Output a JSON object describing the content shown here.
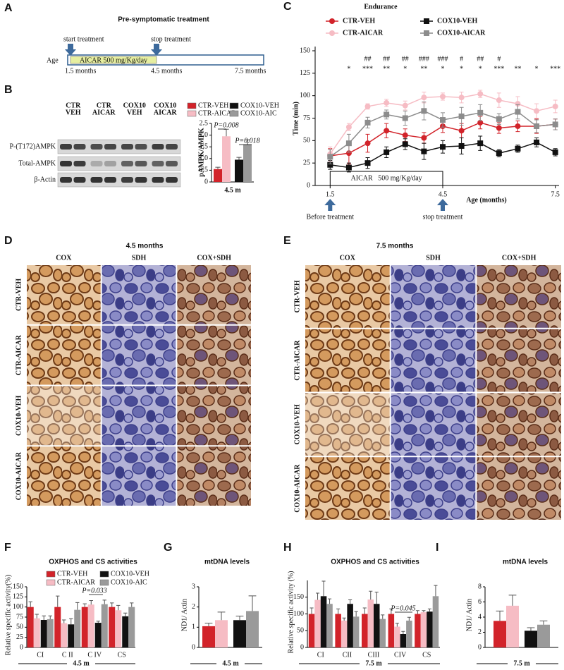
{
  "panel_labels": [
    "A",
    "B",
    "C",
    "D",
    "E",
    "F",
    "G",
    "H",
    "I"
  ],
  "panel_a": {
    "title": "Pre-symptomatic treatment",
    "start": "start treatment",
    "stop": "stop treatment",
    "treatment": "AICAR 500 mg/Kg/day",
    "axis_label": "Age",
    "ages": [
      "1.5 months",
      "4.5 months",
      "7.5 months"
    ]
  },
  "panel_b_blot": {
    "lanes": [
      [
        "CTR",
        "VEH"
      ],
      [
        "CTR",
        "AICAR"
      ],
      [
        "COX10",
        "VEH"
      ],
      [
        "COX10",
        "AICAR"
      ]
    ],
    "rows": [
      "P-(T172)AMPK",
      "Total-AMPK",
      "β-Actin"
    ]
  },
  "histology_d": {
    "title": "4.5 months",
    "columns": [
      "COX",
      "SDH",
      "COX+SDH"
    ],
    "rows": [
      "CTR-VEH",
      "CTR-AICAR",
      "COX10-VEH",
      "COX10-AICAR"
    ]
  },
  "histology_e": {
    "title": "7.5 months",
    "columns": [
      "COX",
      "SDH",
      "COX+SDH"
    ],
    "rows": [
      "CTR-VEH",
      "CTR-AICAR",
      "COX10-VEH",
      "COX10-AICAR"
    ]
  },
  "chart_data": [
    {
      "type": "bar",
      "y_label": "pAMPK/AMPK",
      "x_label": "4.5 m",
      "categories": [
        null
      ],
      "series": [
        {
          "name": "CTR-VEH",
          "color": "#d2232a",
          "values": [
            0.55
          ],
          "errors": [
            0.08
          ]
        },
        {
          "name": "CTR-AICAR",
          "color": "#f6bcc4",
          "values": [
            1.95
          ],
          "errors": [
            0.3
          ]
        },
        {
          "name": "COX10-VEH",
          "color": "#111111",
          "values": [
            0.95
          ],
          "errors": [
            0.1
          ]
        },
        {
          "name": "COX10-AIC",
          "color": "#9a9a9a",
          "values": [
            1.6
          ],
          "errors": [
            0.2
          ]
        }
      ],
      "ylim": [
        0,
        2.5
      ],
      "yticks": [
        0,
        0.5,
        {
          "value": 1,
          "label": "1.0"
        },
        1.5,
        {
          "value": 2,
          "label": "2.0"
        },
        2.5
      ],
      "annotations": [
        "P=0.008",
        "P=0.018"
      ]
    },
    {
      "type": "line",
      "title": "Endurance",
      "x_label": "Age (months)",
      "y_label": "Time (min)",
      "x": [
        1.5,
        2,
        2.5,
        3,
        3.5,
        4,
        4.5,
        5,
        5.5,
        6,
        6.5,
        7,
        7.5
      ],
      "xlim": [
        1.1,
        7.6
      ],
      "xticks": [
        1.5,
        4.5,
        7.5
      ],
      "ylim": [
        0,
        150
      ],
      "yticks": [
        0,
        25,
        50,
        75,
        100,
        125,
        150
      ],
      "series": [
        {
          "name": "CTR-VEH",
          "color": "#d2232a",
          "marker": "circle",
          "values": [
            33,
            36,
            47,
            61,
            56,
            53,
            66,
            61,
            70,
            64,
            66,
            66,
            68
          ],
          "errors": [
            8,
            12,
            10,
            8,
            7,
            6,
            7,
            8,
            7,
            6,
            6,
            8,
            6
          ]
        },
        {
          "name": "CTR-AICAR",
          "color": "#f6bcc4",
          "marker": "circle",
          "values": [
            35,
            65,
            88,
            92,
            89,
            98,
            99,
            98,
            102,
            95,
            91,
            83,
            88
          ],
          "errors": [
            8,
            4,
            3,
            4,
            5,
            6,
            4,
            6,
            4,
            8,
            8,
            8,
            7
          ]
        },
        {
          "name": "COX10-VEH",
          "color": "#111111",
          "marker": "square",
          "values": [
            23,
            20,
            25,
            37,
            46,
            38,
            43,
            44,
            47,
            36,
            41,
            48,
            37
          ],
          "errors": [
            5,
            5,
            6,
            6,
            6,
            9,
            7,
            9,
            8,
            4,
            4,
            5,
            4
          ]
        },
        {
          "name": "COX10-AICAR",
          "color": "#8c8c8c",
          "marker": "square",
          "values": [
            32,
            47,
            70,
            79,
            75,
            83,
            73,
            77,
            81,
            74,
            82,
            66,
            68
          ],
          "errors": [
            8,
            10,
            6,
            5,
            8,
            10,
            8,
            10,
            9,
            6,
            8,
            7,
            6
          ]
        }
      ],
      "significance_hash": [
        null,
        null,
        "##",
        "##",
        "##",
        "###",
        "###",
        "#",
        "##",
        "#",
        null,
        null,
        null
      ],
      "significance_star": [
        null,
        "*",
        "***",
        "**",
        "*",
        "**",
        "*",
        "*",
        "*",
        "***",
        "**",
        "*",
        "***"
      ],
      "treatment_box": {
        "label": "AICAR   500 mg/Kg/day",
        "x": [
          1.5,
          4.5
        ]
      },
      "arrows": [
        {
          "x": 1.5,
          "label": "Before treatment"
        },
        {
          "x": 4.5,
          "label": "stop treatment"
        }
      ]
    },
    {
      "type": "bar",
      "title": "OXPHOS and CS activities",
      "y_label": "Relative specific activity(%)",
      "x_label": "4.5 m",
      "categories": [
        "CI",
        "C II",
        "C IV",
        "CS"
      ],
      "series": [
        {
          "name": "CTR-VEH",
          "color": "#d2232a",
          "values": [
            100,
            100,
            100,
            100
          ],
          "errors": [
            13,
            27,
            8,
            10
          ]
        },
        {
          "name": "CTR-AICAR",
          "color": "#f6bcc4",
          "values": [
            72,
            60,
            106,
            92
          ],
          "errors": [
            10,
            8,
            10,
            12
          ]
        },
        {
          "name": "COX10-VEH",
          "color": "#111111",
          "values": [
            68,
            57,
            61,
            77
          ],
          "errors": [
            10,
            14,
            4,
            8
          ]
        },
        {
          "name": "COX10-AIC",
          "color": "#9a9a9a",
          "values": [
            70,
            93,
            107,
            100
          ],
          "errors": [
            8,
            18,
            10,
            10
          ]
        }
      ],
      "ylim": [
        0,
        150
      ],
      "yticks": [
        0,
        25,
        50,
        75,
        100,
        125,
        150
      ],
      "annotations": [
        "P=0.033"
      ]
    },
    {
      "type": "bar",
      "title": "mtDNA levels",
      "y_label": "ND1/ Actin",
      "x_label": "4.5 m",
      "categories": [
        null
      ],
      "series": [
        {
          "color": "#d2232a",
          "values": [
            1.05
          ],
          "errors": [
            0.15
          ]
        },
        {
          "color": "#f6bcc4",
          "values": [
            1.35
          ],
          "errors": [
            0.4
          ]
        },
        {
          "color": "#111111",
          "values": [
            1.35
          ],
          "errors": [
            0.2
          ]
        },
        {
          "color": "#9a9a9a",
          "values": [
            1.8
          ],
          "errors": [
            0.75
          ]
        }
      ],
      "ylim": [
        0,
        3
      ],
      "yticks": [
        0,
        1,
        2,
        3
      ]
    },
    {
      "type": "bar",
      "title": "OXPHOS and CS activities",
      "y_label": "Relative specific activity (%)",
      "x_label": "7.5 m",
      "categories": [
        "CI",
        "CII",
        "CIII",
        "CIV",
        "CS"
      ],
      "series": [
        {
          "color": "#d2232a",
          "values": [
            100,
            100,
            100,
            100,
            100
          ],
          "errors": [
            18,
            15,
            18,
            15,
            10
          ]
        },
        {
          "color": "#f6bcc4",
          "values": [
            142,
            80,
            143,
            62,
            105
          ],
          "errors": [
            20,
            8,
            25,
            10,
            5
          ]
        },
        {
          "color": "#111111",
          "values": [
            153,
            130,
            130,
            40,
            107
          ],
          "errors": [
            45,
            12,
            35,
            8,
            8
          ]
        },
        {
          "color": "#9a9a9a",
          "values": [
            130,
            92,
            85,
            80,
            153
          ],
          "errors": [
            15,
            15,
            12,
            10,
            32
          ]
        }
      ],
      "ylim": [
        0,
        200
      ],
      "yticks": [
        0,
        50,
        100,
        150
      ],
      "annotations": [
        "P=0.045"
      ]
    },
    {
      "type": "bar",
      "title": "mtDNA levels",
      "y_label": "ND1/ Actin",
      "x_label": "7.5 m",
      "categories": [
        null
      ],
      "series": [
        {
          "color": "#d2232a",
          "values": [
            3.5
          ],
          "errors": [
            1.3
          ]
        },
        {
          "color": "#f6bcc4",
          "values": [
            5.5
          ],
          "errors": [
            1.4
          ]
        },
        {
          "color": "#111111",
          "values": [
            2.2
          ],
          "errors": [
            0.4
          ]
        },
        {
          "color": "#9a9a9a",
          "values": [
            3.0
          ],
          "errors": [
            0.5
          ]
        }
      ],
      "ylim": [
        0,
        8
      ],
      "yticks": [
        0,
        2,
        4,
        6,
        8
      ]
    }
  ]
}
